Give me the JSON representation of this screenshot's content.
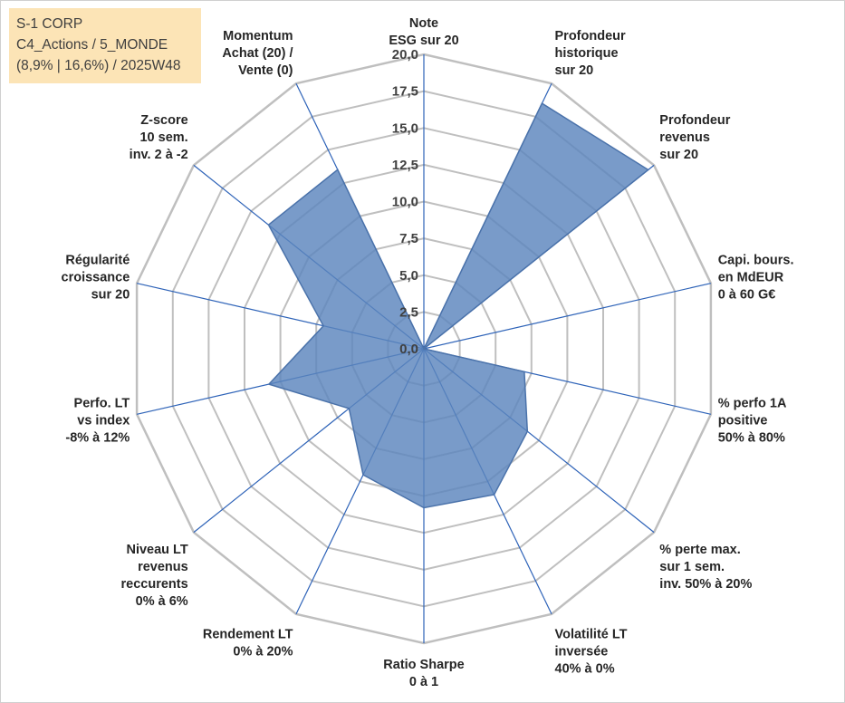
{
  "info": {
    "line1": "S-1 CORP",
    "line2": "C4_Actions / 5_MONDE",
    "line3": "(8,9% | 16,6%) / 2025W48"
  },
  "colors": {
    "fill": "#5b85bd",
    "stroke": "#4a72aa",
    "grid": "#bfbfbf",
    "spoke": "#2e63b8"
  },
  "chart_data": {
    "type": "radar",
    "title": "",
    "rmax": 20,
    "ticks": [
      "0,0",
      "2,5",
      "5,0",
      "7,5",
      "10,0",
      "12,5",
      "15,0",
      "17,5",
      "20,0"
    ],
    "axes": [
      {
        "label": [
          "Note",
          "ESG sur 20"
        ],
        "value": 0
      },
      {
        "label": [
          "Profondeur",
          "historique",
          "sur 20"
        ],
        "value": 18.5
      },
      {
        "label": [
          "Profondeur",
          "revenus",
          "sur 20"
        ],
        "value": 19.5
      },
      {
        "label": [
          "Capi. bours.",
          "en MdEUR",
          "0 à 60 G€"
        ],
        "value": 0
      },
      {
        "label": [
          "% perfo 1A",
          "positive",
          "50% à 80%"
        ],
        "value": 7.0
      },
      {
        "label": [
          "% perte max.",
          "sur 1 sem.",
          "inv. 50% à 20%"
        ],
        "value": 9.0
      },
      {
        "label": [
          "Volatilité LT",
          "inversée",
          "40% à 0%"
        ],
        "value": 11.0
      },
      {
        "label": [
          "Ratio Sharpe",
          "0 à 1"
        ],
        "value": 10.8
      },
      {
        "label": [
          "Rendement LT",
          "0% à 20%"
        ],
        "value": 9.5
      },
      {
        "label": [
          "Niveau LT",
          "revenus",
          "reccurents",
          "0% à 6%"
        ],
        "value": 6.5
      },
      {
        "label": [
          "Perfo. LT",
          "vs index",
          "-8% à 12%"
        ],
        "value": 10.8
      },
      {
        "label": [
          "Régularité",
          "croissance",
          "sur 20"
        ],
        "value": 7.0
      },
      {
        "label": [
          "Z-score",
          "10 sem.",
          "inv. 2 à -2"
        ],
        "value": 13.5
      },
      {
        "label": [
          "Momentum",
          "Achat (20) /",
          "Vente (0)"
        ],
        "value": 13.5
      }
    ]
  }
}
